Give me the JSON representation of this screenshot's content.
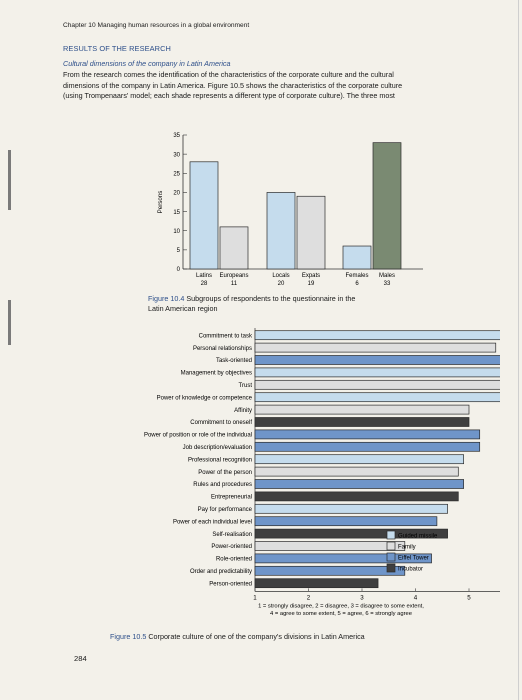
{
  "running_head": "Chapter 10  Managing human resources in a global environment",
  "section_title": "RESULTS OF THE RESEARCH",
  "subheading": "Cultural dimensions of the company in Latin America",
  "body_lines": [
    "From the research comes the identification of the characteristics of the corporate culture and the cultural",
    "dimensions of the company in Latin America. Figure 10.5 shows the characteristics of the corporate culture",
    "(using Trompenaars' model; each shade represents a different type of corporate culture). The three most"
  ],
  "figure_4": {
    "label": "Figure 10.4",
    "title_line1": "Subgroups of respondents to the questionnaire in the",
    "title_line2": "Latin American region"
  },
  "figure_5": {
    "label": "Figure 10.5",
    "title": "Corporate culture of one of the company's divisions in Latin America"
  },
  "page_number": "284",
  "colors": {
    "light_blue": "#c5dced",
    "light_gray": "#dedede",
    "mid_blue": "#6f95c9",
    "dark": "#3f3f3f",
    "bar_stroke": "#2b2b2b",
    "heading_blue": "#2d4f8a"
  },
  "chart_data": [
    {
      "type": "bar",
      "ylabel": "Persons",
      "ylim": [
        0,
        35
      ],
      "yticks": [
        0,
        5,
        10,
        15,
        20,
        25,
        30,
        35
      ],
      "groups": [
        {
          "labels": [
            "Latins",
            "Europeans"
          ],
          "values": [
            28,
            11
          ]
        },
        {
          "labels": [
            "Locals",
            "Expats"
          ],
          "values": [
            20,
            19
          ]
        },
        {
          "labels": [
            "Females",
            "Males"
          ],
          "values": [
            6,
            33
          ]
        }
      ],
      "series_colors": [
        "#c5dced",
        "#dedede"
      ],
      "last_bar_color": "#7a8a72",
      "grid": false
    },
    {
      "type": "bar",
      "orientation": "horizontal",
      "xlim": [
        1,
        6
      ],
      "xticks": [
        1,
        2,
        3,
        4,
        5
      ],
      "categories": [
        "Commitment to task",
        "Personal relationships",
        "Task-oriented",
        "Management by objectives",
        "Trust",
        "Power of knowledge or competence",
        "Affinity",
        "Commitment to oneself",
        "Power of position or role of the individual",
        "Job description/evaluation",
        "Professional recognition",
        "Power of the person",
        "Rules and procedures",
        "Entrepreneurial",
        "Pay for performance",
        "Power of each individual level",
        "Self-realisation",
        "Power-oriented",
        "Role-oriented",
        "Order and predictability",
        "Person-oriented"
      ],
      "values": [
        5.9,
        5.5,
        5.8,
        5.8,
        5.8,
        5.8,
        5.0,
        5.0,
        5.2,
        5.2,
        4.9,
        4.8,
        4.9,
        4.8,
        4.6,
        4.4,
        4.6,
        3.8,
        4.3,
        3.8,
        3.3
      ],
      "culture_types": [
        "Guided missile",
        "Family",
        "Eiffel Tower",
        "Guided missile",
        "Family",
        "Guided missile",
        "Family",
        "Incubator",
        "Eiffel Tower",
        "Eiffel Tower",
        "Guided missile",
        "Family",
        "Eiffel Tower",
        "Incubator",
        "Guided missile",
        "Eiffel Tower",
        "Incubator",
        "Family",
        "Eiffel Tower",
        "Eiffel Tower",
        "Incubator"
      ],
      "legend": [
        {
          "name": "Guided missile",
          "color": "#c5dced"
        },
        {
          "name": "Family",
          "color": "#dedede"
        },
        {
          "name": "Eiffel Tower",
          "color": "#6f95c9"
        },
        {
          "name": "Incubator",
          "color": "#3f3f3f"
        }
      ],
      "legend_position": "right",
      "scale_lines": [
        "1 = strongly disagree, 2 = disagree, 3 = disagree to some extent,",
        "4 = agree to some extent, 5 = agree, 6 = strongly agree"
      ]
    }
  ]
}
